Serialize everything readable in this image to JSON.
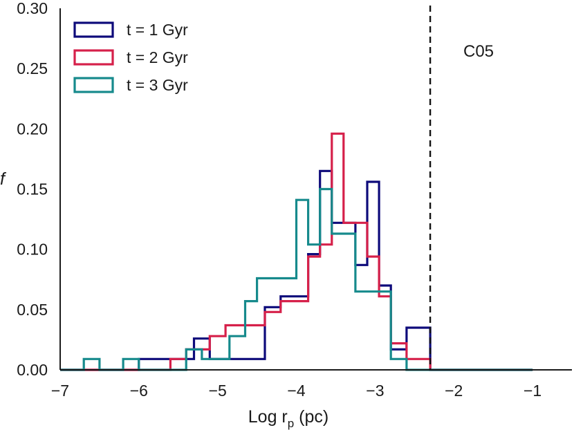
{
  "chart_data": {
    "type": "step-histogram",
    "xlabel_main": "Log r",
    "xlabel_sub": "p",
    "xlabel_unit": " (pc)",
    "ylabel": "f",
    "xlim": [
      -7,
      -0.5
    ],
    "ylim": [
      0,
      0.3
    ],
    "xticks": [
      -7,
      -6,
      -5,
      -4,
      -3,
      -2,
      -1
    ],
    "xtick_labels": [
      "−7",
      "−6",
      "−5",
      "−4",
      "−3",
      "−2",
      "−1"
    ],
    "yticks": [
      0,
      0.05,
      0.1,
      0.15,
      0.2,
      0.25,
      0.3
    ],
    "ytick_labels": [
      "0.00",
      "0.05",
      "0.10",
      "0.15",
      "0.20",
      "0.25",
      "0.30"
    ],
    "grid": false,
    "legend_position": "top-left",
    "annotation": {
      "text": "C05",
      "x": -2.3,
      "line_style": "dashed"
    },
    "series": [
      {
        "name": "t = 1 Gyr",
        "color": "#0d0a7a",
        "edges": [
          -7.0,
          -6.5,
          -6.0,
          -5.5,
          -5.3,
          -5.1,
          -4.6,
          -4.4,
          -4.2,
          -4.0,
          -3.85,
          -3.7,
          -3.55,
          -3.4,
          -3.25,
          -3.1,
          -2.95,
          -2.8,
          -2.6,
          -2.3,
          -1.0
        ],
        "values": [
          0.0,
          0.0,
          0.009,
          0.009,
          0.026,
          0.009,
          0.009,
          0.052,
          0.061,
          0.061,
          0.096,
          0.165,
          0.122,
          0.122,
          0.087,
          0.156,
          0.07,
          0.017,
          0.035,
          0.0
        ]
      },
      {
        "name": "t = 2 Gyr",
        "color": "#d6204a",
        "edges": [
          -7.0,
          -5.9,
          -5.6,
          -5.4,
          -5.1,
          -4.9,
          -4.7,
          -4.4,
          -4.2,
          -4.0,
          -3.85,
          -3.7,
          -3.55,
          -3.4,
          -3.25,
          -3.1,
          -2.95,
          -2.8,
          -2.6,
          -2.3,
          -1.0
        ],
        "values": [
          0.0,
          0.0,
          0.009,
          0.017,
          0.028,
          0.037,
          0.037,
          0.048,
          0.057,
          0.057,
          0.094,
          0.104,
          0.196,
          0.122,
          0.122,
          0.094,
          0.061,
          0.022,
          0.009,
          0.0
        ]
      },
      {
        "name": "t = 3 Gyr",
        "color": "#168a8c",
        "edges": [
          -7.0,
          -6.7,
          -6.5,
          -6.2,
          -6.0,
          -5.5,
          -5.4,
          -5.2,
          -5.0,
          -4.85,
          -4.65,
          -4.5,
          -4.2,
          -4.0,
          -3.85,
          -3.7,
          -3.55,
          -3.4,
          -3.25,
          -3.1,
          -2.8,
          -2.6,
          -2.3,
          -1.0
        ],
        "values": [
          0.0,
          0.009,
          0.0,
          0.009,
          0.0,
          0.0,
          0.017,
          0.009,
          0.009,
          0.028,
          0.057,
          0.076,
          0.076,
          0.141,
          0.104,
          0.15,
          0.113,
          0.113,
          0.065,
          0.065,
          0.009,
          0.0,
          0.0
        ]
      }
    ]
  }
}
